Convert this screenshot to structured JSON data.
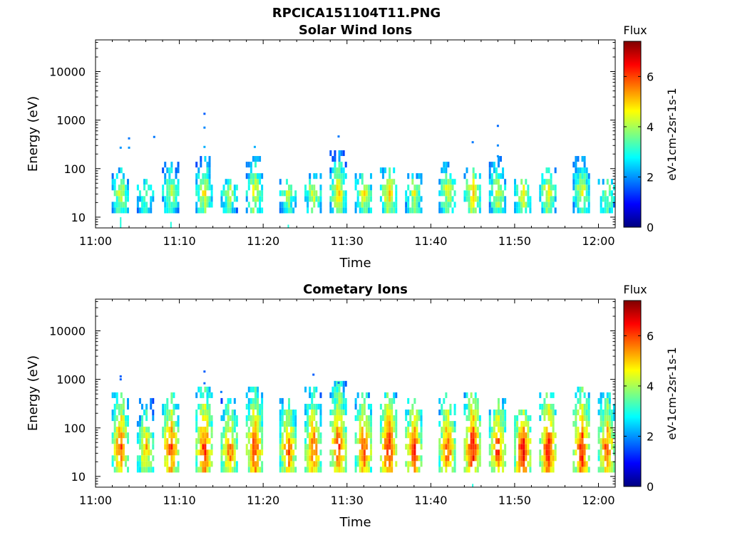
{
  "figure": {
    "title": "RPCICA151104T11.PNG"
  },
  "colormap": {
    "name": "jet",
    "stops": [
      "#00007f",
      "#0000ff",
      "#007fff",
      "#00ffff",
      "#7fff7f",
      "#ffff00",
      "#ff7f00",
      "#ff0000",
      "#7f0000"
    ]
  },
  "chart_data": [
    {
      "type": "heatmap",
      "title": "Solar Wind Ions",
      "xlabel": "Time",
      "ylabel": "Energy (eV)",
      "x_range": [
        "11:00",
        "12:02"
      ],
      "x_ticks": [
        "11:00",
        "11:10",
        "11:20",
        "11:30",
        "11:40",
        "11:50",
        "12:00"
      ],
      "y_scale": "log",
      "y_range": [
        6,
        45000
      ],
      "y_ticks": [
        10,
        100,
        1000,
        10000
      ],
      "y_tick_labels": [
        "10",
        "100",
        "1000",
        "10000"
      ],
      "colorbar": {
        "title": "Flux",
        "label": "eV-1cm-2sr-1s-1",
        "range": [
          0,
          7.4
        ],
        "ticks": [
          0,
          2,
          4,
          6
        ],
        "tick_labels": [
          "0",
          "2",
          "4",
          "6"
        ]
      },
      "bursts": [
        {
          "time": "11:03",
          "emax": 90,
          "peak": 4.6,
          "tail": 10
        },
        {
          "time": "11:06",
          "emax": 50,
          "peak": 4.2
        },
        {
          "time": "11:09",
          "emax": 120,
          "peak": 4.5,
          "tail": 8
        },
        {
          "time": "11:13",
          "emax": 140,
          "peak": 4.8
        },
        {
          "time": "11:16",
          "emax": 60,
          "peak": 4.3
        },
        {
          "time": "11:19",
          "emax": 160,
          "peak": 4.8
        },
        {
          "time": "11:23",
          "emax": 60,
          "peak": 4.3,
          "tail": 7
        },
        {
          "time": "11:26",
          "emax": 70,
          "peak": 4.7
        },
        {
          "time": "11:29",
          "emax": 200,
          "peak": 5.0
        },
        {
          "time": "11:32",
          "emax": 80,
          "peak": 4.8
        },
        {
          "time": "11:35",
          "emax": 100,
          "peak": 5.2
        },
        {
          "time": "11:38",
          "emax": 70,
          "peak": 4.6
        },
        {
          "time": "11:42",
          "emax": 120,
          "peak": 4.6
        },
        {
          "time": "11:45",
          "emax": 90,
          "peak": 5.2
        },
        {
          "time": "11:48",
          "emax": 140,
          "peak": 4.6
        },
        {
          "time": "11:51",
          "emax": 60,
          "peak": 4.8
        },
        {
          "time": "11:54",
          "emax": 100,
          "peak": 4.9
        },
        {
          "time": "11:58",
          "emax": 170,
          "peak": 4.6
        },
        {
          "time": "12:01",
          "emax": 60,
          "peak": 4.3
        }
      ],
      "sparse_points": [
        {
          "time": "11:03",
          "energy": 270,
          "value": 2.0
        },
        {
          "time": "11:04",
          "energy": 420,
          "value": 1.8
        },
        {
          "time": "11:04",
          "energy": 270,
          "value": 2.0
        },
        {
          "time": "11:07",
          "energy": 450,
          "value": 1.8
        },
        {
          "time": "11:13",
          "energy": 1350,
          "value": 1.6
        },
        {
          "time": "11:13",
          "energy": 700,
          "value": 1.9
        },
        {
          "time": "11:13",
          "energy": 280,
          "value": 2.2
        },
        {
          "time": "11:19",
          "energy": 280,
          "value": 2.2
        },
        {
          "time": "11:29",
          "energy": 460,
          "value": 1.8
        },
        {
          "time": "11:45",
          "energy": 350,
          "value": 1.8
        },
        {
          "time": "11:48",
          "energy": 760,
          "value": 1.7
        },
        {
          "time": "11:48",
          "energy": 300,
          "value": 1.9
        },
        {
          "time": "11:48",
          "energy": 180,
          "value": 2.0
        }
      ]
    },
    {
      "type": "heatmap",
      "title": "Cometary Ions",
      "xlabel": "Time",
      "ylabel": "Energy (eV)",
      "x_range": [
        "11:00",
        "12:02"
      ],
      "x_ticks": [
        "11:00",
        "11:10",
        "11:20",
        "11:30",
        "11:40",
        "11:50",
        "12:00"
      ],
      "y_scale": "log",
      "y_range": [
        6,
        45000
      ],
      "y_ticks": [
        10,
        100,
        1000,
        10000
      ],
      "y_tick_labels": [
        "10",
        "100",
        "1000",
        "10000"
      ],
      "colorbar": {
        "title": "Flux",
        "label": "eV-1cm-2sr-1s-1",
        "range": [
          0,
          7.4
        ],
        "ticks": [
          0,
          2,
          4,
          6
        ],
        "tick_labels": [
          "0",
          "2",
          "4",
          "6"
        ]
      },
      "bursts": [
        {
          "time": "11:03",
          "emax": 500,
          "peak": 6.3,
          "tail": 6
        },
        {
          "time": "11:06",
          "emax": 350,
          "peak": 5.4,
          "tail": 6
        },
        {
          "time": "11:09",
          "emax": 500,
          "peak": 6.3
        },
        {
          "time": "11:13",
          "emax": 600,
          "peak": 6.5
        },
        {
          "time": "11:16",
          "emax": 350,
          "peak": 6.0,
          "tail": 6
        },
        {
          "time": "11:19",
          "emax": 600,
          "peak": 6.4,
          "tail": 6
        },
        {
          "time": "11:23",
          "emax": 400,
          "peak": 6.0
        },
        {
          "time": "11:26",
          "emax": 550,
          "peak": 6.2
        },
        {
          "time": "11:29",
          "emax": 900,
          "peak": 6.3
        },
        {
          "time": "11:32",
          "emax": 500,
          "peak": 6.2
        },
        {
          "time": "11:35",
          "emax": 450,
          "peak": 6.8
        },
        {
          "time": "11:38",
          "emax": 400,
          "peak": 6.4
        },
        {
          "time": "11:42",
          "emax": 450,
          "peak": 6.2
        },
        {
          "time": "11:45",
          "emax": 500,
          "peak": 6.8,
          "tail": 7
        },
        {
          "time": "11:48",
          "emax": 400,
          "peak": 6.3
        },
        {
          "time": "11:51",
          "emax": 200,
          "peak": 6.9
        },
        {
          "time": "11:54",
          "emax": 500,
          "peak": 6.7
        },
        {
          "time": "11:58",
          "emax": 700,
          "peak": 6.7
        },
        {
          "time": "12:01",
          "emax": 450,
          "peak": 6.2
        }
      ],
      "sparse_points": [
        {
          "time": "11:03",
          "energy": 1150,
          "value": 1.6
        },
        {
          "time": "11:03",
          "energy": 1000,
          "value": 1.6
        },
        {
          "time": "11:13",
          "energy": 1450,
          "value": 1.6
        },
        {
          "time": "11:13",
          "energy": 830,
          "value": 1.7
        },
        {
          "time": "11:15",
          "energy": 550,
          "value": 1.8
        },
        {
          "time": "11:26",
          "energy": 1250,
          "value": 1.6
        },
        {
          "time": "11:29",
          "energy": 850,
          "value": 1.7
        }
      ]
    }
  ]
}
